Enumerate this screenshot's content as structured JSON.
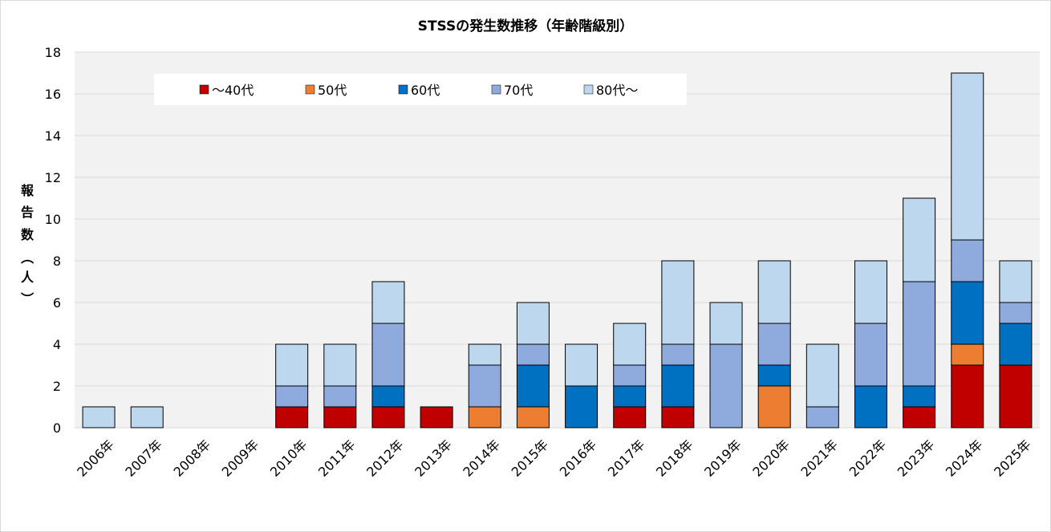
{
  "chart_data": {
    "type": "bar",
    "stacked": true,
    "title": "STSSの発生数推移（年齢階級別）",
    "ylabel": "報告数（人）",
    "xlabel": "",
    "ylim": [
      0,
      18
    ],
    "yticks": [
      0,
      2,
      4,
      6,
      8,
      10,
      12,
      14,
      16,
      18
    ],
    "grid": true,
    "legend_position": "top-left inside plot",
    "categories": [
      "2006年",
      "2007年",
      "2008年",
      "2009年",
      "2010年",
      "2011年",
      "2012年",
      "2013年",
      "2014年",
      "2015年",
      "2016年",
      "2017年",
      "2018年",
      "2019年",
      "2020年",
      "2021年",
      "2022年",
      "2023年",
      "2024年",
      "2025年"
    ],
    "series": [
      {
        "name": "～40代",
        "color": "#c00000",
        "values": [
          0,
          0,
          0,
          0,
          1,
          1,
          1,
          1,
          0,
          0,
          0,
          1,
          1,
          0,
          0,
          0,
          0,
          1,
          3,
          3
        ]
      },
      {
        "name": "50代",
        "color": "#ed7d31",
        "values": [
          0,
          0,
          0,
          0,
          0,
          0,
          0,
          0,
          1,
          1,
          0,
          0,
          0,
          0,
          2,
          0,
          0,
          0,
          1,
          0
        ]
      },
      {
        "name": "60代",
        "color": "#0070c0",
        "values": [
          0,
          0,
          0,
          0,
          0,
          0,
          1,
          0,
          0,
          2,
          2,
          1,
          2,
          0,
          1,
          0,
          2,
          1,
          3,
          2
        ]
      },
      {
        "name": "70代",
        "color": "#8faadc",
        "values": [
          0,
          0,
          0,
          0,
          1,
          1,
          3,
          0,
          2,
          1,
          0,
          1,
          1,
          4,
          2,
          1,
          3,
          5,
          2,
          1
        ]
      },
      {
        "name": "80代～",
        "color": "#bdd7ee",
        "values": [
          1,
          1,
          0,
          0,
          2,
          2,
          2,
          0,
          1,
          2,
          2,
          2,
          4,
          2,
          3,
          3,
          3,
          4,
          8,
          2
        ]
      }
    ]
  }
}
